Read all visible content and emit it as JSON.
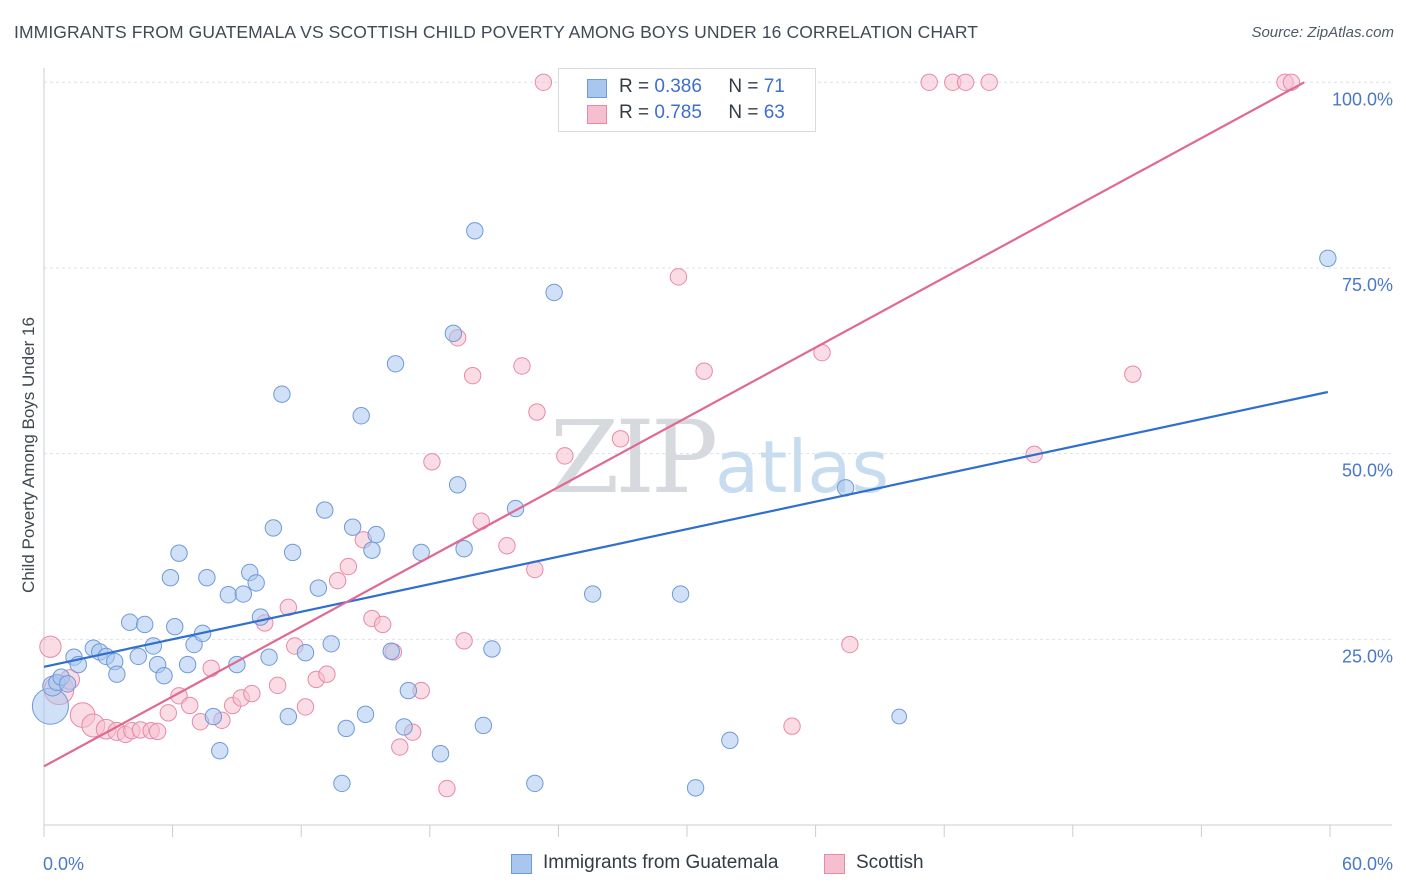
{
  "title": "IMMIGRANTS FROM GUATEMALA VS SCOTTISH CHILD POVERTY AMONG BOYS UNDER 16 CORRELATION CHART",
  "source": "Source: ZipAtlas.com",
  "watermark": {
    "zip": "ZIP",
    "atlas": "atlas"
  },
  "colors": {
    "guatemala_fill": "#a9c6ee",
    "guatemala_stroke": "#6f9ad8",
    "guatemala_line": "#2e6fcf",
    "scottish_fill": "#f6bfd0",
    "scottish_stroke": "#e889a8",
    "scottish_line": "#e06892",
    "tick_text": "#4a78c8",
    "grid": "#dde1e6"
  },
  "legend": [
    {
      "r_label": "R =",
      "r_value": "0.386",
      "n_label": "N =",
      "n_value": "71"
    },
    {
      "r_label": "R =",
      "r_value": "0.785",
      "n_label": "N =",
      "n_value": "63"
    }
  ],
  "chart_data": {
    "type": "scatter",
    "title": "IMMIGRANTS FROM GUATEMALA VS SCOTTISH CHILD POVERTY AMONG BOYS UNDER 16 CORRELATION CHART",
    "xlabel": "",
    "ylabel": "Child Poverty Among Boys Under 16",
    "xlim": [
      0,
      60
    ],
    "ylim": [
      0,
      103
    ],
    "x_tick_labels": [
      "0.0%",
      "60.0%"
    ],
    "y_ticks": [
      25,
      50,
      75,
      100
    ],
    "y_tick_labels": [
      "25.0%",
      "50.0%",
      "75.0%",
      "100.0%"
    ],
    "grid": true,
    "legend_position": "bottom",
    "series": [
      {
        "name": "Immigrants from Guatemala",
        "trend": {
          "x": [
            0,
            59.9
          ],
          "y": [
            21.3,
            58.3
          ]
        },
        "points": [
          [
            0.3,
            16.0,
            2.2
          ],
          [
            0.4,
            18.7,
            1.2
          ],
          [
            0.6,
            19.2,
            1
          ],
          [
            0.8,
            19.9,
            1
          ],
          [
            1.1,
            19.0,
            1
          ],
          [
            1.4,
            22.6,
            1
          ],
          [
            1.6,
            21.6,
            1
          ],
          [
            2.3,
            23.8,
            1
          ],
          [
            2.6,
            23.3,
            1
          ],
          [
            2.9,
            22.7,
            1
          ],
          [
            3.3,
            22.0,
            1
          ],
          [
            3.4,
            20.3,
            1
          ],
          [
            4.0,
            27.3,
            1
          ],
          [
            4.4,
            22.7,
            1
          ],
          [
            4.7,
            27.0,
            1
          ],
          [
            5.1,
            24.1,
            1
          ],
          [
            5.3,
            21.6,
            1
          ],
          [
            5.6,
            20.1,
            1
          ],
          [
            5.9,
            33.3,
            1
          ],
          [
            6.1,
            26.7,
            1
          ],
          [
            6.3,
            36.6,
            1
          ],
          [
            6.7,
            21.6,
            1
          ],
          [
            7.0,
            24.3,
            1
          ],
          [
            7.4,
            25.8,
            1
          ],
          [
            7.6,
            33.3,
            1
          ],
          [
            7.9,
            14.6,
            1
          ],
          [
            8.2,
            10.0,
            1
          ],
          [
            8.6,
            31.0,
            1
          ],
          [
            9.0,
            21.6,
            1
          ],
          [
            9.3,
            31.1,
            1
          ],
          [
            9.6,
            34.0,
            1
          ],
          [
            9.9,
            32.6,
            1
          ],
          [
            10.1,
            28.0,
            1
          ],
          [
            10.5,
            22.6,
            1
          ],
          [
            10.7,
            40.0,
            1
          ],
          [
            11.1,
            58.0,
            1
          ],
          [
            11.4,
            14.6,
            1
          ],
          [
            11.6,
            36.7,
            1
          ],
          [
            12.2,
            23.2,
            1
          ],
          [
            12.8,
            31.9,
            1
          ],
          [
            13.1,
            42.4,
            1
          ],
          [
            13.4,
            24.4,
            1
          ],
          [
            13.9,
            5.6,
            1
          ],
          [
            14.1,
            13.0,
            1
          ],
          [
            14.4,
            40.1,
            1
          ],
          [
            14.8,
            55.1,
            1
          ],
          [
            15.0,
            14.9,
            1
          ],
          [
            15.3,
            37.0,
            1
          ],
          [
            15.5,
            39.1,
            1
          ],
          [
            16.2,
            23.4,
            1
          ],
          [
            16.4,
            62.1,
            1
          ],
          [
            16.8,
            13.2,
            1
          ],
          [
            17.0,
            18.1,
            1
          ],
          [
            17.6,
            36.7,
            1
          ],
          [
            18.5,
            9.6,
            1
          ],
          [
            19.1,
            66.2,
            1
          ],
          [
            19.3,
            45.8,
            1
          ],
          [
            19.6,
            37.2,
            1
          ],
          [
            20.1,
            80.0,
            1
          ],
          [
            20.5,
            13.4,
            1
          ],
          [
            20.9,
            23.7,
            1
          ],
          [
            22.0,
            42.6,
            1
          ],
          [
            22.9,
            5.6,
            1
          ],
          [
            23.8,
            71.7,
            1
          ],
          [
            25.6,
            31.1,
            1
          ],
          [
            29.7,
            31.1,
            1
          ],
          [
            30.4,
            5.0,
            1
          ],
          [
            32.0,
            11.4,
            1
          ],
          [
            37.4,
            45.4,
            1
          ],
          [
            59.9,
            76.3,
            1
          ],
          [
            39.9,
            14.6,
            0.9
          ]
        ]
      },
      {
        "name": "Scottish",
        "trend": {
          "x": [
            0,
            58.8
          ],
          "y": [
            7.9,
            100.0
          ]
        },
        "points": [
          [
            0.3,
            24.0,
            1.3
          ],
          [
            0.7,
            18.2,
            1.8
          ],
          [
            1.2,
            19.6,
            1.2
          ],
          [
            1.8,
            14.8,
            1.5
          ],
          [
            2.3,
            13.4,
            1.4
          ],
          [
            2.9,
            12.9,
            1.2
          ],
          [
            3.4,
            12.6,
            1.1
          ],
          [
            3.8,
            12.2,
            1
          ],
          [
            4.1,
            12.7,
            1
          ],
          [
            4.5,
            12.8,
            1
          ],
          [
            5.0,
            12.7,
            1
          ],
          [
            5.3,
            12.6,
            1
          ],
          [
            5.8,
            15.1,
            1
          ],
          [
            6.3,
            17.4,
            1
          ],
          [
            6.8,
            16.1,
            1
          ],
          [
            7.3,
            13.9,
            1
          ],
          [
            7.8,
            21.1,
            1
          ],
          [
            8.3,
            14.1,
            1
          ],
          [
            8.8,
            16.1,
            1
          ],
          [
            9.2,
            17.1,
            1
          ],
          [
            9.7,
            17.7,
            1
          ],
          [
            10.3,
            27.2,
            1
          ],
          [
            10.9,
            18.8,
            1
          ],
          [
            11.4,
            29.3,
            1
          ],
          [
            11.7,
            24.1,
            1
          ],
          [
            12.2,
            15.9,
            1
          ],
          [
            12.7,
            19.6,
            1
          ],
          [
            13.2,
            20.3,
            1
          ],
          [
            13.7,
            32.9,
            1
          ],
          [
            14.2,
            34.8,
            1
          ],
          [
            14.9,
            38.4,
            1
          ],
          [
            15.3,
            27.8,
            1
          ],
          [
            15.8,
            27.0,
            1
          ],
          [
            16.3,
            23.3,
            1
          ],
          [
            16.6,
            10.5,
            1
          ],
          [
            17.2,
            12.5,
            1
          ],
          [
            17.6,
            18.1,
            1
          ],
          [
            18.1,
            48.9,
            1
          ],
          [
            18.8,
            4.9,
            1
          ],
          [
            19.3,
            65.6,
            1
          ],
          [
            19.6,
            24.8,
            1
          ],
          [
            20.0,
            60.5,
            1
          ],
          [
            20.4,
            40.9,
            1
          ],
          [
            21.6,
            37.6,
            1
          ],
          [
            22.3,
            61.8,
            1
          ],
          [
            22.9,
            34.4,
            1
          ],
          [
            23.0,
            55.6,
            1
          ],
          [
            23.3,
            100.0,
            1
          ],
          [
            24.3,
            49.7,
            1
          ],
          [
            26.9,
            52.0,
            1
          ],
          [
            29.6,
            73.8,
            1
          ],
          [
            30.8,
            61.1,
            1
          ],
          [
            34.9,
            13.3,
            1
          ],
          [
            36.3,
            63.6,
            1
          ],
          [
            37.6,
            24.3,
            1
          ],
          [
            41.3,
            100.0,
            1
          ],
          [
            42.4,
            100.0,
            1
          ],
          [
            43.0,
            100.0,
            1
          ],
          [
            44.1,
            100.0,
            1
          ],
          [
            46.2,
            49.9,
            1
          ],
          [
            50.8,
            60.7,
            1
          ],
          [
            57.9,
            100.0,
            1
          ],
          [
            58.2,
            100.0,
            1
          ]
        ]
      }
    ]
  }
}
